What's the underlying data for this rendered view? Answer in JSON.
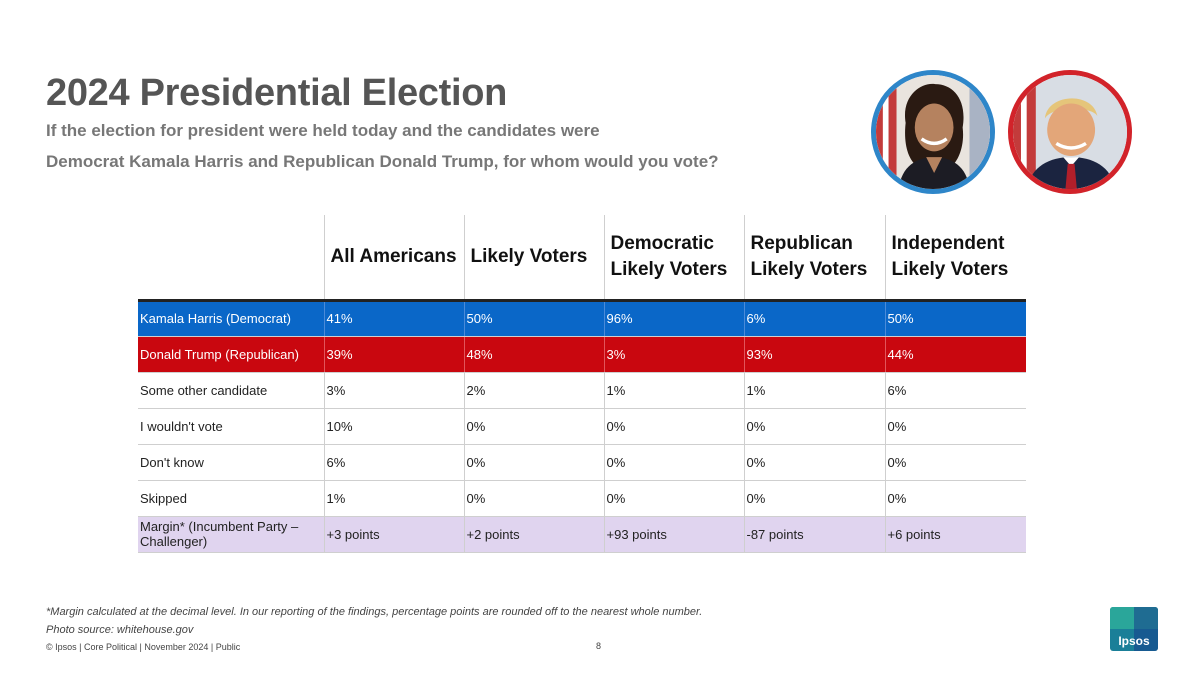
{
  "header": {
    "title": "2024 Presidential Election",
    "subtitle_line1": "If the election for president were held today and the candidates were",
    "subtitle_line2": "Democrat Kamala Harris and Republican Donald Trump, for whom would you vote?"
  },
  "table": {
    "columns": [
      {
        "line1": "All Americans",
        "line2": ""
      },
      {
        "line1": "Likely Voters",
        "line2": ""
      },
      {
        "line1": "Democratic",
        "line2": "Likely Voters"
      },
      {
        "line1": "Republican",
        "line2": "Likely Voters"
      },
      {
        "line1": "Independent",
        "line2": "Likely Voters"
      }
    ],
    "rows": [
      {
        "label": "Kamala Harris (Democrat)",
        "values": [
          "41%",
          "50%",
          "96%",
          "6%",
          "50%"
        ]
      },
      {
        "label": "Donald Trump (Republican)",
        "values": [
          "39%",
          "48%",
          "3%",
          "93%",
          "44%"
        ]
      },
      {
        "label": "Some other candidate",
        "values": [
          "3%",
          "2%",
          "1%",
          "1%",
          "6%"
        ]
      },
      {
        "label": "I wouldn't vote",
        "values": [
          "10%",
          "0%",
          "0%",
          "0%",
          "0%"
        ]
      },
      {
        "label": "Don't know",
        "values": [
          "6%",
          "0%",
          "0%",
          "0%",
          "0%"
        ]
      },
      {
        "label": "Skipped",
        "values": [
          "1%",
          "0%",
          "0%",
          "0%",
          "0%"
        ]
      },
      {
        "label": "Margin* (Incumbent Party – Challenger)",
        "values": [
          "+3 points",
          "+2 points",
          "+93 points",
          "-87 points",
          "+6 points"
        ]
      }
    ]
  },
  "footer": {
    "footnote": "*Margin calculated at the decimal level. In our reporting of the findings, percentage points are rounded off to the nearest whole number.",
    "photo_source": "Photo source: whitehouse.gov",
    "copyright": "© Ipsos | Core Political | November 2024 | Public",
    "page_number": "8",
    "logo_text": "Ipsos"
  },
  "colors": {
    "harris_row": "#0a67c8",
    "trump_row": "#c9070f",
    "margin_row": "#e0d4ef",
    "harris_ring": "#2e86c9",
    "trump_ring": "#d2232a"
  }
}
